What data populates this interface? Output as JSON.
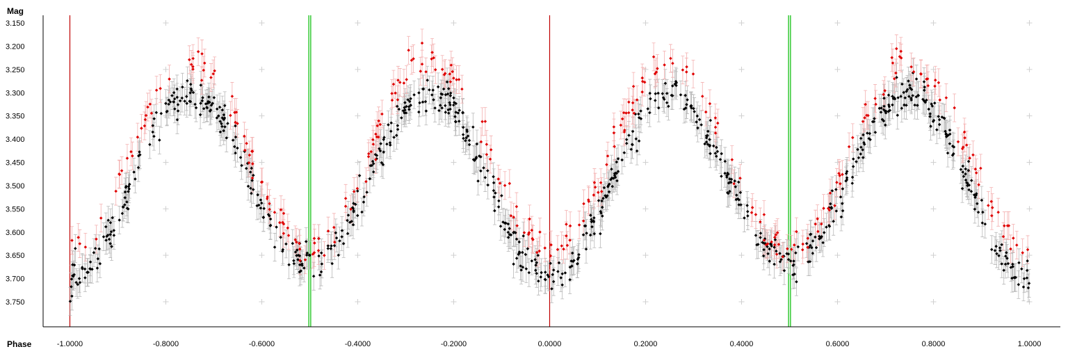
{
  "chart_data": {
    "type": "scatter",
    "title": "",
    "xlabel": "Phase",
    "ylabel": "Mag",
    "xlim": [
      -1.06,
      1.06
    ],
    "ylim": [
      3.14,
      3.8
    ],
    "y_inverted": true,
    "x_ticks": [
      "-1.0000",
      "-0.8000",
      "-0.6000",
      "-0.4000",
      "-0.2000",
      "0.0000",
      "0.2000",
      "0.4000",
      "0.6000",
      "0.8000",
      "1.0000"
    ],
    "y_ticks": [
      "3.150",
      "3.200",
      "3.250",
      "3.300",
      "3.350",
      "3.400",
      "3.450",
      "3.500",
      "3.550",
      "3.600",
      "3.650",
      "3.700",
      "3.750"
    ],
    "grid": "plus-markers",
    "vertical_markers": [
      {
        "x": -1.0,
        "color": "#c00000"
      },
      {
        "x": 0.0,
        "color": "#c00000"
      },
      {
        "x": -0.502,
        "color": "#00bb00"
      },
      {
        "x": -0.498,
        "color": "#00bb00"
      },
      {
        "x": 0.498,
        "color": "#00bb00"
      },
      {
        "x": 0.502,
        "color": "#00bb00"
      }
    ],
    "model": {
      "description_points_phase": [
        0.0,
        0.25,
        0.5,
        0.75,
        1.0
      ],
      "black_mag": [
        3.7,
        3.3,
        3.665,
        3.3,
        3.7
      ],
      "red_mag": [
        3.635,
        3.23,
        3.635,
        3.23,
        3.635
      ],
      "error_bar_mag": 0.03
    },
    "series": [
      {
        "color": "#000000",
        "error_color": "#b8b8b8",
        "count_per_cycle": 420,
        "offset": 0.0
      },
      {
        "color": "#e00000",
        "error_color": "#f4b0b0",
        "count_per_cycle": 160,
        "offset": -0.065
      }
    ]
  }
}
